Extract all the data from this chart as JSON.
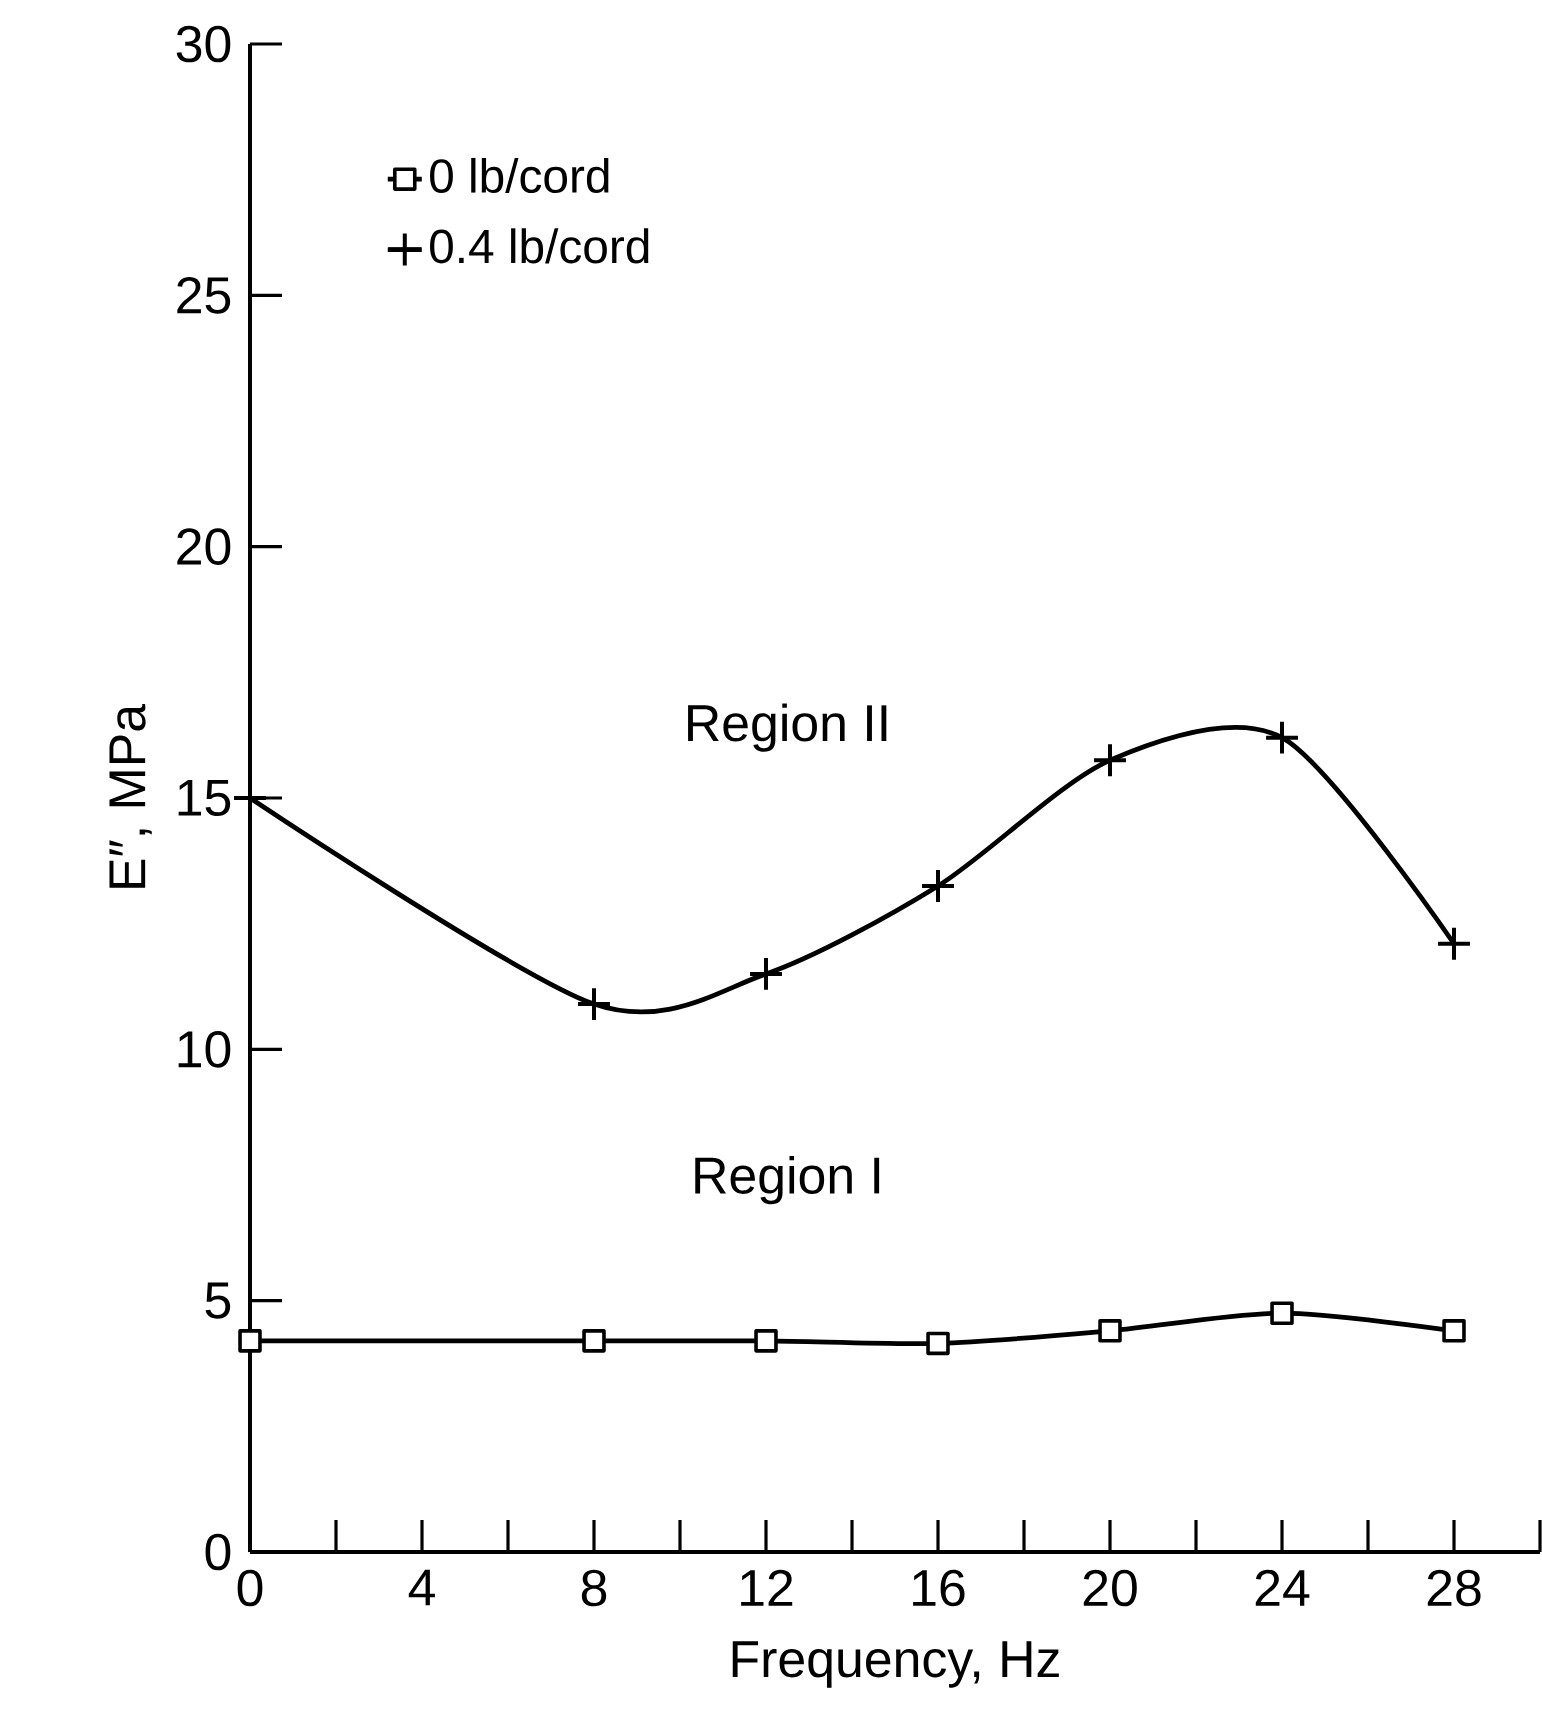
{
  "chart_data": {
    "type": "line",
    "xlabel": "Frequency, Hz",
    "ylabel": "E″, MPa",
    "x": [
      0,
      8,
      12,
      16,
      20,
      24,
      28
    ],
    "series": [
      {
        "name": "0 lb/cord",
        "color": "#000000",
        "marker": "square",
        "values": [
          4.2,
          4.2,
          4.2,
          4.15,
          4.4,
          4.75,
          4.4
        ]
      },
      {
        "name": "0.4 lb/cord",
        "color": "#000000",
        "marker": "cross",
        "values": [
          15.0,
          10.9,
          11.5,
          13.25,
          15.75,
          16.2,
          12.1
        ]
      }
    ],
    "annotations": [
      "Region I",
      "Region II"
    ],
    "xlim": [
      0,
      30
    ],
    "ylim": [
      0,
      30
    ],
    "xticks": [
      0,
      {
        "value": 2,
        "label": null
      },
      4,
      {
        "value": 6,
        "label": null
      },
      8,
      {
        "value": 10,
        "label": null
      },
      12,
      {
        "value": 14,
        "label": null
      },
      16,
      {
        "value": 18,
        "label": null
      },
      20,
      {
        "value": 22,
        "label": null
      },
      24,
      {
        "value": 26,
        "label": null
      },
      28,
      {
        "value": 30,
        "label": null
      }
    ],
    "yticks": [
      0,
      5,
      10,
      15,
      20,
      25,
      30
    ],
    "grid": false,
    "legend": "top left"
  }
}
